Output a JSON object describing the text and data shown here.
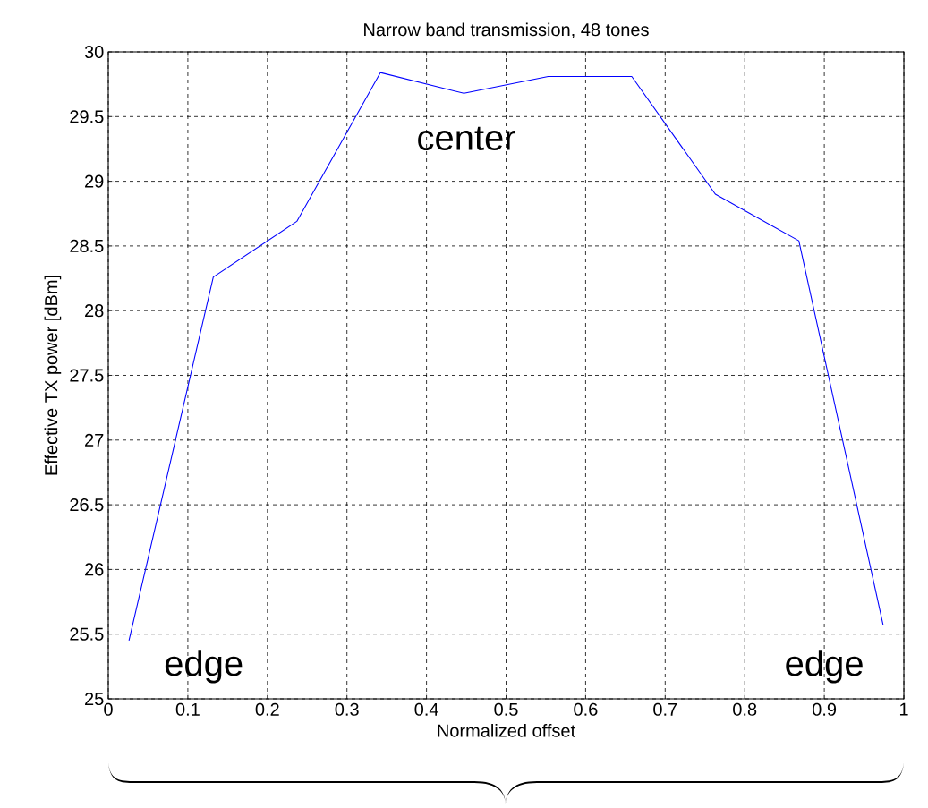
{
  "chart_data": {
    "type": "line",
    "title": "Narrow band transmission, 48 tones",
    "xlabel": "Normalized offset",
    "ylabel": "Effective TX power [dBm]",
    "x": [
      0.026,
      0.132,
      0.237,
      0.342,
      0.447,
      0.553,
      0.658,
      0.763,
      0.868,
      0.974
    ],
    "series": [
      {
        "color": "#0000ff",
        "values": [
          25.45,
          28.26,
          28.69,
          29.84,
          29.68,
          29.81,
          29.81,
          28.9,
          28.54,
          25.57
        ]
      }
    ],
    "xlim": [
      0,
      1
    ],
    "ylim": [
      25,
      30
    ],
    "xticks": [
      0,
      0.1,
      0.2,
      0.3,
      0.4,
      0.5,
      0.6,
      0.7,
      0.8,
      0.9,
      1
    ],
    "yticks": [
      25,
      25.5,
      26,
      26.5,
      27,
      27.5,
      28,
      28.5,
      29,
      29.5,
      30
    ],
    "grid": true,
    "marker": "none",
    "line_style": "solid",
    "annotations": [
      "center",
      "edge",
      "edge"
    ]
  }
}
